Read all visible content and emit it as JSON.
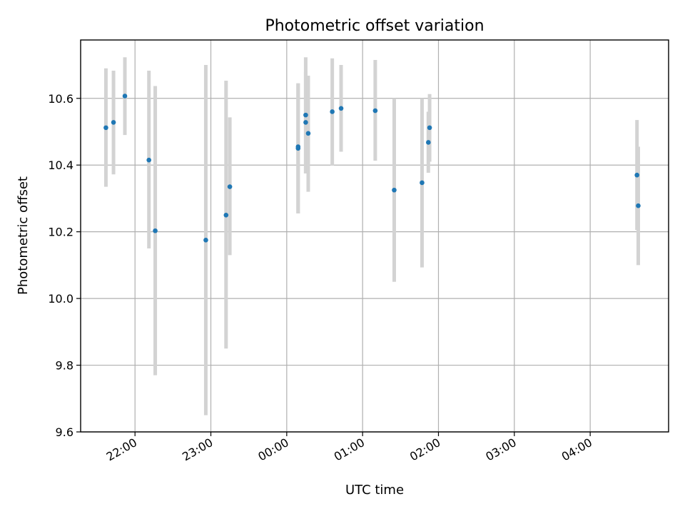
{
  "chart_data": {
    "type": "scatter",
    "title": "Photometric offset variation",
    "xlabel": "UTC time",
    "ylabel": "Photometric offset",
    "x_unit": "minutes relative to 00:00 UTC",
    "xlim": [
      -163,
      302
    ],
    "ylim": [
      9.6,
      10.775
    ],
    "xticks": [
      {
        "value": -120,
        "label": "22:00"
      },
      {
        "value": -60,
        "label": "23:00"
      },
      {
        "value": 0,
        "label": "00:00"
      },
      {
        "value": 60,
        "label": "01:00"
      },
      {
        "value": 120,
        "label": "02:00"
      },
      {
        "value": 180,
        "label": "03:00"
      },
      {
        "value": 240,
        "label": "04:00"
      }
    ],
    "yticks": [
      {
        "value": 9.6,
        "label": "9.6"
      },
      {
        "value": 9.8,
        "label": "9.8"
      },
      {
        "value": 10.0,
        "label": "10.0"
      },
      {
        "value": 10.2,
        "label": "10.2"
      },
      {
        "value": 10.4,
        "label": "10.4"
      },
      {
        "value": 10.6,
        "label": "10.6"
      }
    ],
    "grid": true,
    "colors": {
      "point": "#1f77b4",
      "errorbar": "#d3d3d3"
    },
    "points": [
      {
        "time": "21:37",
        "x": -143,
        "y": 10.512,
        "ylo": 10.335,
        "yhi": 10.69
      },
      {
        "time": "21:43",
        "x": -137,
        "y": 10.528,
        "ylo": 10.372,
        "yhi": 10.683
      },
      {
        "time": "21:52",
        "x": -128,
        "y": 10.607,
        "ylo": 10.49,
        "yhi": 10.723
      },
      {
        "time": "22:11",
        "x": -109,
        "y": 10.415,
        "ylo": 10.15,
        "yhi": 10.683
      },
      {
        "time": "22:16",
        "x": -104,
        "y": 10.203,
        "ylo": 9.77,
        "yhi": 10.637
      },
      {
        "time": "22:56",
        "x": -64,
        "y": 10.175,
        "ylo": 9.65,
        "yhi": 10.7
      },
      {
        "time": "23:12",
        "x": -48,
        "y": 10.25,
        "ylo": 9.85,
        "yhi": 10.653
      },
      {
        "time": "23:15",
        "x": -45,
        "y": 10.335,
        "ylo": 10.13,
        "yhi": 10.543
      },
      {
        "time": "00:09",
        "x": 9,
        "y": 10.455,
        "ylo": 10.255,
        "yhi": 10.645
      },
      {
        "time": "00:09",
        "x": 9,
        "y": 10.45,
        "ylo": 10.255,
        "yhi": 10.645
      },
      {
        "time": "00:15",
        "x": 15,
        "y": 10.528,
        "ylo": 10.375,
        "yhi": 10.68
      },
      {
        "time": "00:15",
        "x": 15,
        "y": 10.55,
        "ylo": 10.375,
        "yhi": 10.723
      },
      {
        "time": "00:17",
        "x": 17,
        "y": 10.495,
        "ylo": 10.32,
        "yhi": 10.668
      },
      {
        "time": "00:36",
        "x": 36,
        "y": 10.56,
        "ylo": 10.398,
        "yhi": 10.72
      },
      {
        "time": "00:43",
        "x": 43,
        "y": 10.57,
        "ylo": 10.44,
        "yhi": 10.7
      },
      {
        "time": "01:10",
        "x": 70,
        "y": 10.563,
        "ylo": 10.413,
        "yhi": 10.715
      },
      {
        "time": "01:25",
        "x": 85,
        "y": 10.325,
        "ylo": 10.05,
        "yhi": 10.6
      },
      {
        "time": "01:47",
        "x": 107,
        "y": 10.347,
        "ylo": 10.093,
        "yhi": 10.6
      },
      {
        "time": "01:52",
        "x": 112,
        "y": 10.468,
        "ylo": 10.377,
        "yhi": 10.56
      },
      {
        "time": "01:53",
        "x": 113,
        "y": 10.512,
        "ylo": 10.41,
        "yhi": 10.613
      },
      {
        "time": "04:37",
        "x": 277,
        "y": 10.37,
        "ylo": 10.205,
        "yhi": 10.535
      },
      {
        "time": "04:38",
        "x": 278,
        "y": 10.278,
        "ylo": 10.1,
        "yhi": 10.455
      }
    ]
  }
}
